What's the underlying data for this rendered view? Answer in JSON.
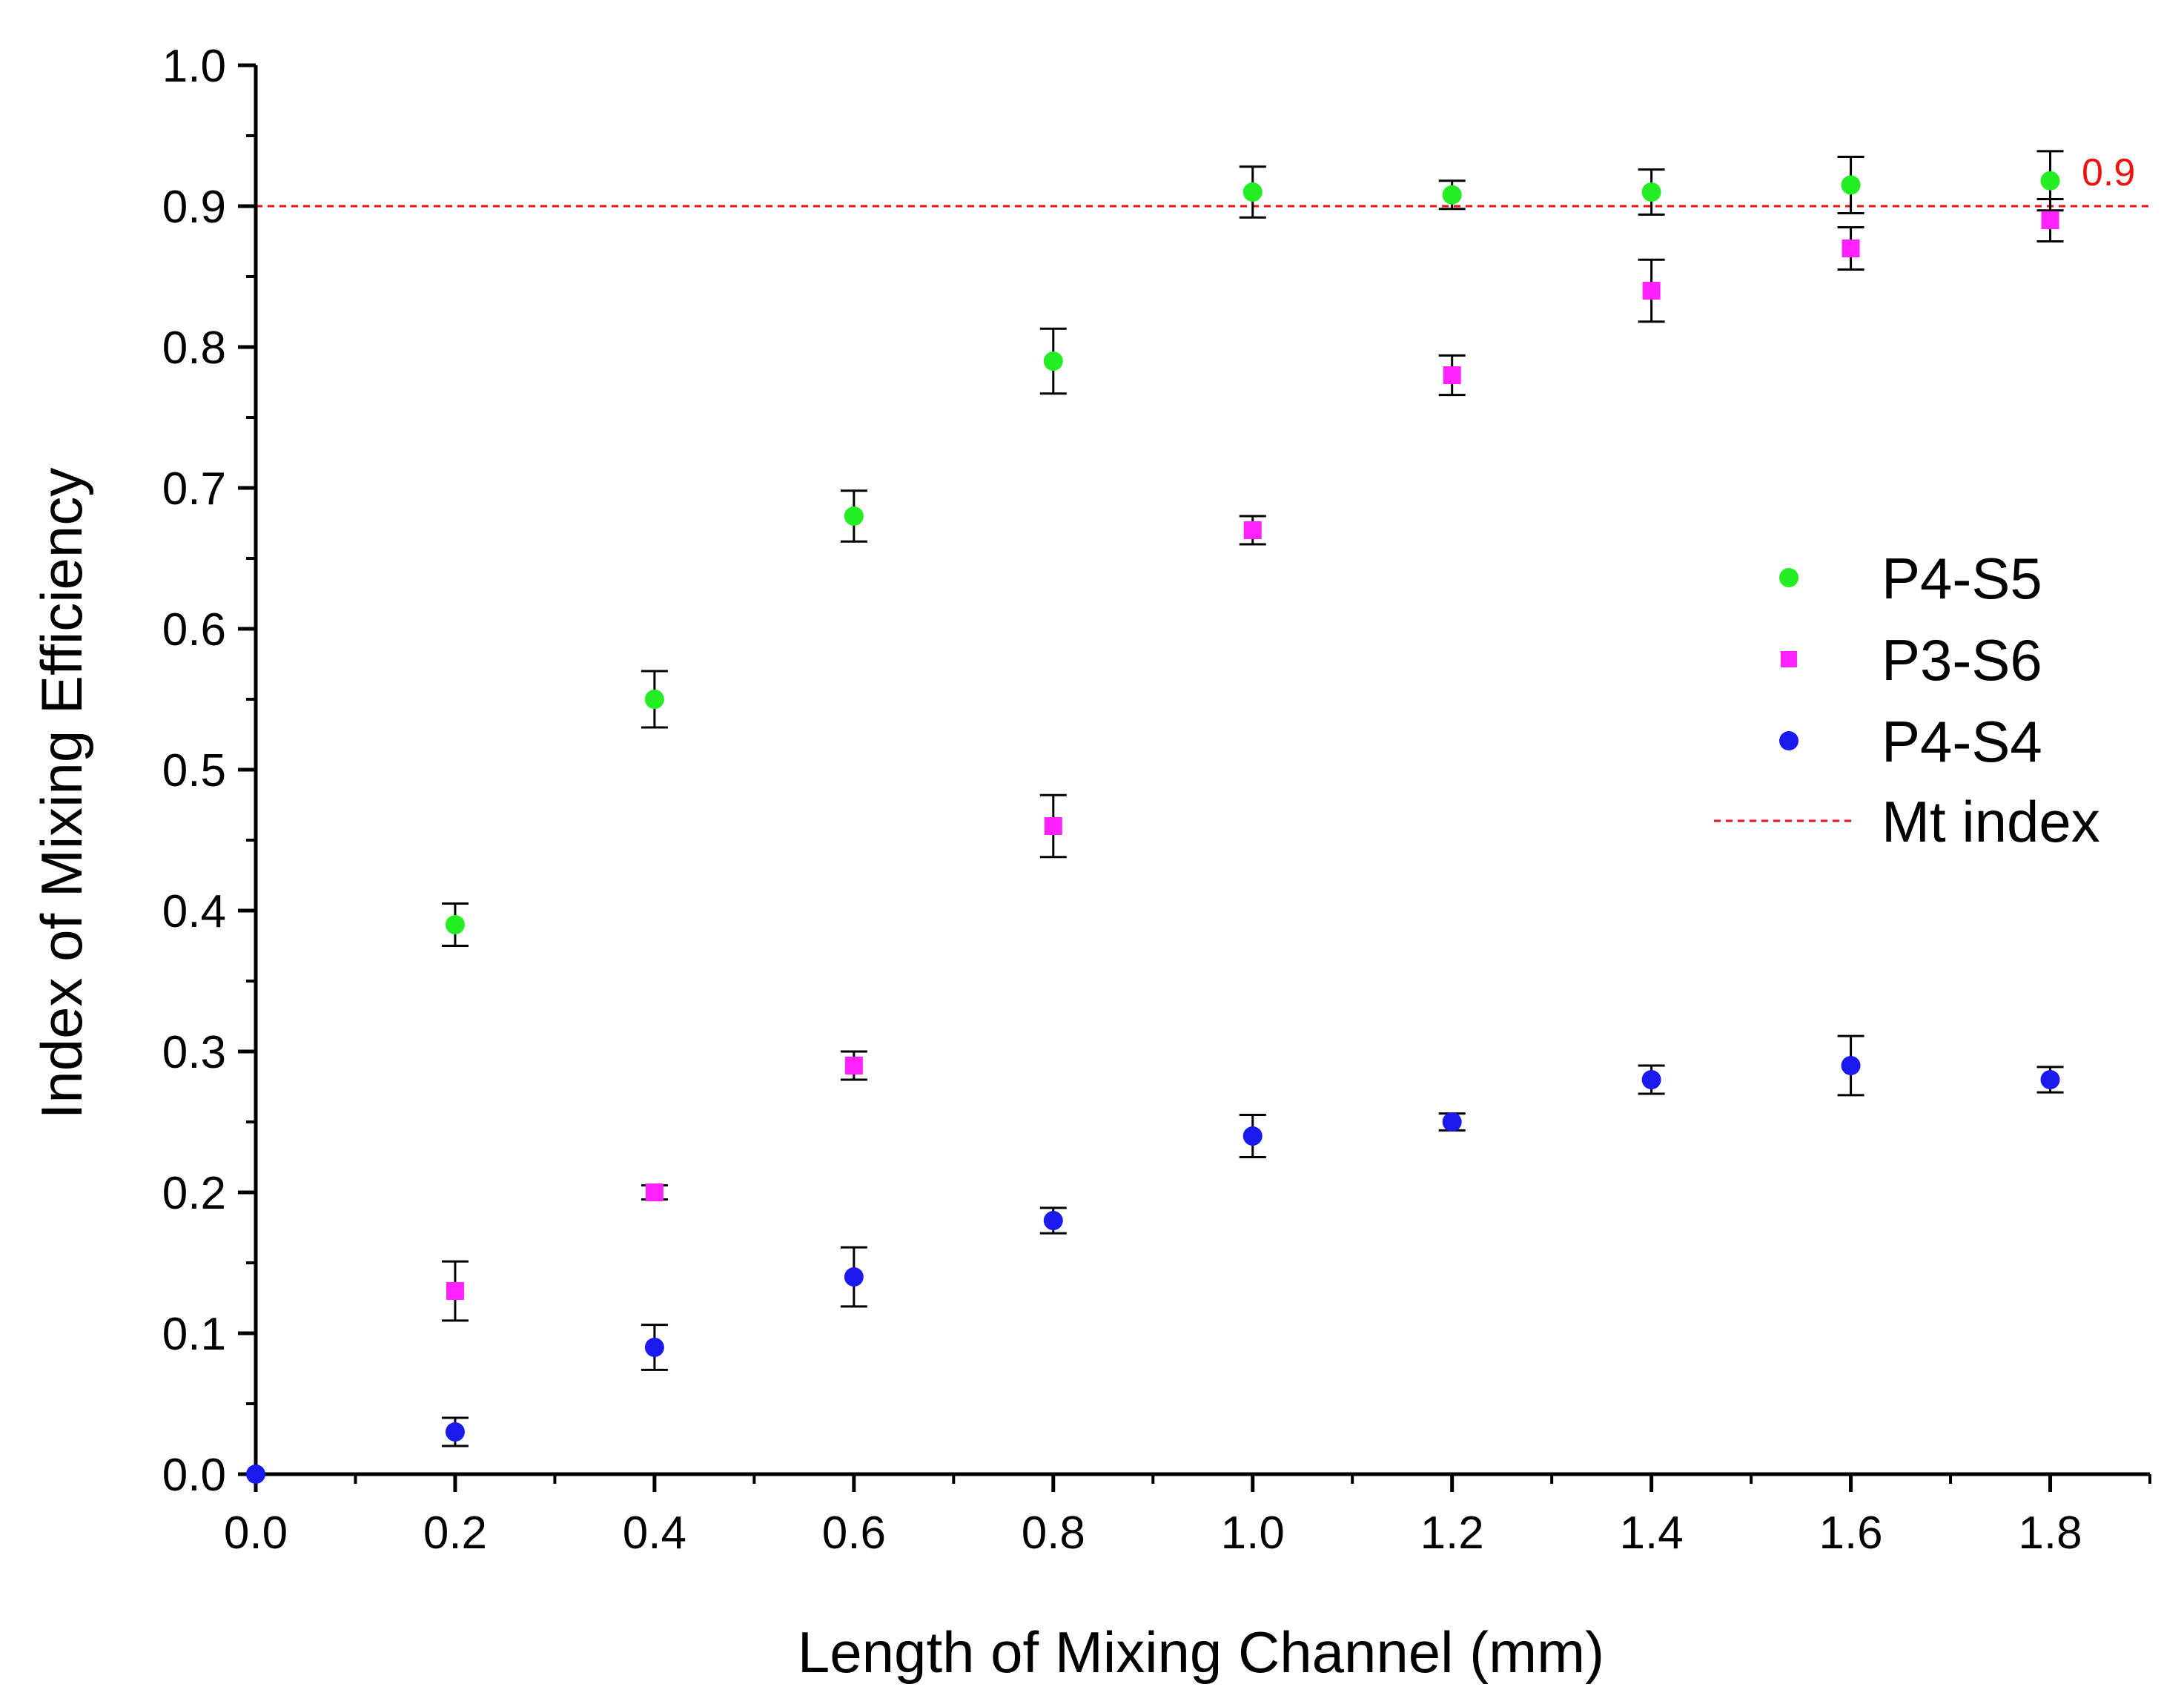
{
  "chart_data": {
    "type": "scatter",
    "title": "",
    "xlabel": "Length of Mixing Channel (mm)",
    "ylabel": "Index of Mixing Efficiency",
    "xlim": [
      0.0,
      1.9
    ],
    "ylim": [
      0.0,
      1.0
    ],
    "x_ticks": [
      "0.0",
      "0.2",
      "0.4",
      "0.6",
      "0.8",
      "1.0",
      "1.2",
      "1.4",
      "1.6",
      "1.8"
    ],
    "x_tick_values": [
      0.0,
      0.2,
      0.4,
      0.6,
      0.8,
      1.0,
      1.2,
      1.4,
      1.6,
      1.8
    ],
    "y_ticks": [
      "0.0",
      "0.1",
      "0.2",
      "0.3",
      "0.4",
      "0.5",
      "0.6",
      "0.7",
      "0.8",
      "0.9",
      "1.0"
    ],
    "y_tick_values": [
      0.0,
      0.1,
      0.2,
      0.3,
      0.4,
      0.5,
      0.6,
      0.7,
      0.8,
      0.9,
      1.0
    ],
    "series": [
      {
        "name": "P4-S5",
        "marker": "circle",
        "color": "#22ee22",
        "x": [
          0.2,
          0.4,
          0.6,
          0.8,
          1.0,
          1.2,
          1.4,
          1.6,
          1.8
        ],
        "y": [
          0.39,
          0.55,
          0.68,
          0.79,
          0.91,
          0.908,
          0.91,
          0.915,
          0.918
        ],
        "err": [
          0.015,
          0.02,
          0.018,
          0.023,
          0.018,
          0.01,
          0.016,
          0.02,
          0.021
        ]
      },
      {
        "name": "P3-S6",
        "marker": "square",
        "color": "#ff22ff",
        "x": [
          0.2,
          0.4,
          0.6,
          0.8,
          1.0,
          1.2,
          1.4,
          1.6,
          1.8
        ],
        "y": [
          0.13,
          0.2,
          0.29,
          0.46,
          0.67,
          0.78,
          0.84,
          0.87,
          0.89
        ],
        "err": [
          0.021,
          0.005,
          0.01,
          0.022,
          0.01,
          0.014,
          0.022,
          0.015,
          0.015
        ]
      },
      {
        "name": "P4-S4",
        "marker": "circle",
        "color": "#1a1aee",
        "x": [
          0.0,
          0.2,
          0.4,
          0.6,
          0.8,
          1.0,
          1.2,
          1.4,
          1.6,
          1.8
        ],
        "y": [
          0.0,
          0.03,
          0.09,
          0.14,
          0.18,
          0.24,
          0.25,
          0.28,
          0.29,
          0.28
        ],
        "err": [
          0.0,
          0.01,
          0.016,
          0.021,
          0.009,
          0.015,
          0.006,
          0.01,
          0.021,
          0.009
        ]
      }
    ],
    "reference_line": {
      "name": "Mt index",
      "y": 0.9,
      "label": "0.9",
      "color": "#ee1111",
      "style": "dashed"
    },
    "legend": {
      "placement": "right",
      "entries": [
        "P4-S5",
        "P3-S6",
        "P4-S4",
        "Mt index"
      ]
    },
    "grid": false
  }
}
